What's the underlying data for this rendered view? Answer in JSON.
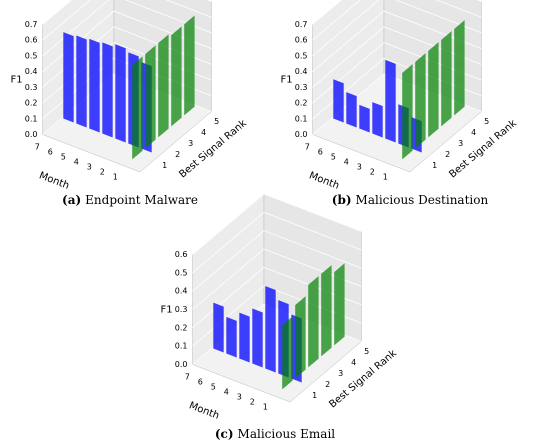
{
  "chart_data": [
    {
      "type": "bar3d",
      "caption_label": "(a)",
      "caption": "Endpoint Malware",
      "zlabel": "F1",
      "xlabel": "Month",
      "ylabel": "Best Signal Rank",
      "months": [
        "1",
        "2",
        "3",
        "4",
        "5",
        "6",
        "7"
      ],
      "ranks": [
        "1",
        "2",
        "3",
        "4",
        "5"
      ],
      "series": [
        {
          "color": "#0000ff",
          "values": [
            0.55,
            0.58,
            0.6,
            0.58,
            0.57,
            0.56,
            0.55
          ]
        },
        {
          "color": "#008000",
          "values": [
            0.6,
            0.6,
            0.6,
            0.58,
            0.58
          ]
        }
      ],
      "zlim": [
        0,
        0.7
      ],
      "zticks": [
        {
          "value": 0,
          "label": "0.0"
        },
        0.1,
        0.2,
        0.3,
        0.4,
        0.5,
        0.6,
        0.7
      ]
    },
    {
      "type": "bar3d",
      "caption_label": "(b)",
      "caption": "Malicious Destination",
      "zlabel": "F1",
      "xlabel": "Month",
      "ylabel": "Best Signal Rank",
      "months": [
        "1",
        "2",
        "3",
        "4",
        "5",
        "6",
        "7"
      ],
      "ranks": [
        "1",
        "2",
        "3",
        "4",
        "5"
      ],
      "series": [
        {
          "color": "#0000ff",
          "values": [
            0.2,
            0.25,
            0.5,
            0.2,
            0.15,
            0.2,
            0.25
          ]
        },
        {
          "color": "#008000",
          "values": [
            0.55,
            0.55,
            0.55,
            0.55,
            0.55
          ]
        }
      ],
      "zlim": [
        0,
        0.7
      ],
      "zticks": [
        {
          "value": 0,
          "label": "0.0"
        },
        0.1,
        0.2,
        0.3,
        0.4,
        0.5,
        0.6,
        0.7
      ]
    },
    {
      "type": "bar3d",
      "caption_label": "(c)",
      "caption": "Malicious Email",
      "zlabel": "F1",
      "xlabel": "Month",
      "ylabel": "Best Signal Rank",
      "months": [
        "1",
        "2",
        "3",
        "4",
        "5",
        "6",
        "7"
      ],
      "ranks": [
        "1",
        "2",
        "3",
        "4",
        "5"
      ],
      "series": [
        {
          "color": "#0000ff",
          "values": [
            0.35,
            0.4,
            0.45,
            0.3,
            0.25,
            0.2,
            0.25
          ]
        },
        {
          "color": "#008000",
          "values": [
            0.35,
            0.4,
            0.45,
            0.45,
            0.4
          ]
        }
      ],
      "zlim": [
        0,
        0.6
      ],
      "zticks": [
        {
          "value": 0,
          "label": "0.0"
        },
        0.1,
        0.2,
        0.3,
        0.4,
        0.5,
        0.6
      ]
    }
  ]
}
